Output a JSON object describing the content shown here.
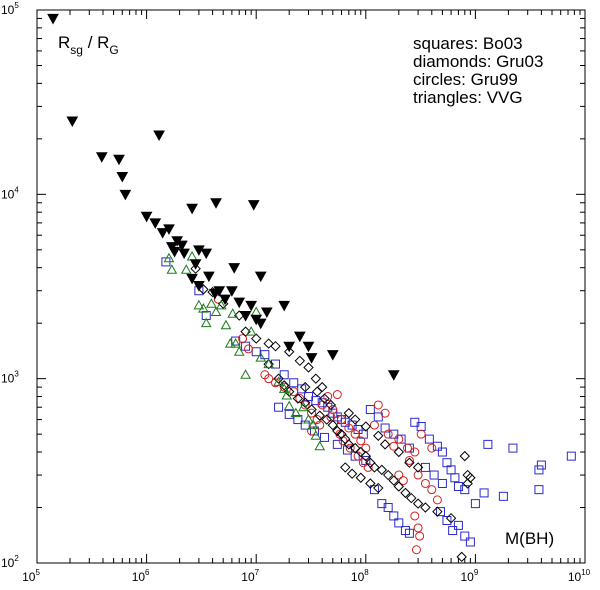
{
  "chart_data": {
    "type": "scatter",
    "title": "",
    "xlabel": "M(BH)",
    "ylabel": "R_sg / R_G",
    "xscale": "log",
    "yscale": "log",
    "xlim": [
      100000,
      10000000000
    ],
    "ylim": [
      100,
      100000
    ],
    "grid": false,
    "legend_placement": "top-right",
    "y_label_text": {
      "main": "R",
      "sub1": "sg",
      "sep": " / R",
      "sub2": "G"
    },
    "x_ticks": [
      {
        "base": "10",
        "exp": "5",
        "value": 100000
      },
      {
        "base": "10",
        "exp": "6",
        "value": 1000000
      },
      {
        "base": "10",
        "exp": "7",
        "value": 10000000
      },
      {
        "base": "10",
        "exp": "8",
        "value": 100000000
      },
      {
        "base": "10",
        "exp": "9",
        "value": 1000000000
      },
      {
        "base": "10",
        "exp": "10",
        "value": 10000000000
      }
    ],
    "y_ticks": [
      {
        "base": "10",
        "exp": "2",
        "value": 100
      },
      {
        "base": "10",
        "exp": "3",
        "value": 1000
      },
      {
        "base": "10",
        "exp": "4",
        "value": 10000
      },
      {
        "base": "10",
        "exp": "5",
        "value": 100000
      }
    ],
    "legend_lines": [
      "squares: Bo03",
      "diamonds: Gru03",
      "circles: Gru99",
      "triangles: VVG"
    ],
    "series": [
      {
        "marker": "triangle-down-filled",
        "color": "#000000",
        "points": [
          [
            140000,
            90000
          ],
          [
            210000,
            25000
          ],
          [
            390000,
            16000
          ],
          [
            560000,
            15500
          ],
          [
            600000,
            12500
          ],
          [
            640000,
            10000
          ],
          [
            1300000,
            21000
          ],
          [
            1000000,
            7600
          ],
          [
            1200000,
            7000
          ],
          [
            1400000,
            6200
          ],
          [
            1600000,
            6500
          ],
          [
            1700000,
            5200
          ],
          [
            1800000,
            4900
          ],
          [
            1900000,
            5600
          ],
          [
            2100000,
            5300
          ],
          [
            2200000,
            4800
          ],
          [
            2600000,
            8400
          ],
          [
            3000000,
            5000
          ],
          [
            3500000,
            4800
          ],
          [
            4300000,
            9000
          ],
          [
            2800000,
            4200
          ],
          [
            2600000,
            3500
          ],
          [
            3000000,
            3200
          ],
          [
            3700000,
            3600
          ],
          [
            4200000,
            2900
          ],
          [
            4600000,
            3000
          ],
          [
            5200000,
            2700
          ],
          [
            6000000,
            3000
          ],
          [
            9500000,
            8800
          ],
          [
            6300000,
            4000
          ],
          [
            11000000,
            3600
          ],
          [
            7000000,
            2600
          ],
          [
            8000000,
            2200
          ],
          [
            9000000,
            2500
          ],
          [
            10000000,
            2100
          ],
          [
            11000000,
            2000
          ],
          [
            12500000,
            2300
          ],
          [
            18000000,
            2500
          ],
          [
            20000000,
            1500
          ],
          [
            25000000,
            1700
          ],
          [
            30000000,
            1500
          ],
          [
            32000000,
            1300
          ],
          [
            50000000,
            1350
          ],
          [
            180000000,
            1050
          ]
        ]
      },
      {
        "marker": "triangle-up-open",
        "color": "#1a7a1a",
        "points": [
          [
            1600000,
            4500
          ],
          [
            1700000,
            3900
          ],
          [
            2300000,
            3900
          ],
          [
            2600000,
            4600
          ],
          [
            3000000,
            2500
          ],
          [
            3300000,
            2400
          ],
          [
            3500000,
            2000
          ],
          [
            3900000,
            2550
          ],
          [
            4300000,
            2300
          ],
          [
            4800000,
            2500
          ],
          [
            5300000,
            1950
          ],
          [
            5800000,
            1550
          ],
          [
            6100000,
            2250
          ],
          [
            6500000,
            1550
          ],
          [
            7000000,
            1400
          ],
          [
            8000000,
            1050
          ],
          [
            9000000,
            1800
          ],
          [
            10000000,
            2300
          ],
          [
            11000000,
            1300
          ],
          [
            13000000,
            1200
          ],
          [
            16000000,
            960
          ],
          [
            18000000,
            880
          ],
          [
            19000000,
            810
          ],
          [
            20000000,
            710
          ],
          [
            23000000,
            650
          ],
          [
            27000000,
            700
          ],
          [
            30000000,
            600
          ],
          [
            33000000,
            560
          ],
          [
            35000000,
            490
          ],
          [
            38000000,
            430
          ]
        ]
      },
      {
        "marker": "diamond-open",
        "color": "#000000",
        "points": [
          [
            2800000,
            3950
          ],
          [
            3300000,
            3050
          ],
          [
            4000000,
            2950
          ],
          [
            5000000,
            2550
          ],
          [
            7000000,
            2200
          ],
          [
            8000000,
            1800
          ],
          [
            10000000,
            1650
          ],
          [
            13000000,
            1550
          ],
          [
            15000000,
            1500
          ],
          [
            20000000,
            1400
          ],
          [
            25000000,
            1250
          ],
          [
            30000000,
            1150
          ],
          [
            35000000,
            1000
          ],
          [
            40000000,
            900
          ],
          [
            13000000,
            1200
          ],
          [
            16000000,
            1000
          ],
          [
            18000000,
            920
          ],
          [
            20000000,
            850
          ],
          [
            24000000,
            780
          ],
          [
            28000000,
            740
          ],
          [
            32000000,
            680
          ],
          [
            38000000,
            630
          ],
          [
            44000000,
            600
          ],
          [
            50000000,
            560
          ],
          [
            55000000,
            520
          ],
          [
            60000000,
            500
          ],
          [
            65000000,
            470
          ],
          [
            70000000,
            440
          ],
          [
            80000000,
            420
          ],
          [
            90000000,
            400
          ],
          [
            100000000,
            380
          ],
          [
            110000000,
            350
          ],
          [
            120000000,
            330
          ],
          [
            140000000,
            320
          ],
          [
            160000000,
            300
          ],
          [
            180000000,
            280
          ],
          [
            200000000,
            260
          ],
          [
            230000000,
            240
          ],
          [
            260000000,
            225
          ],
          [
            300000000,
            210
          ],
          [
            350000000,
            200
          ],
          [
            450000000,
            190
          ],
          [
            600000000,
            175
          ],
          [
            800000000,
            380
          ],
          [
            850000000,
            270
          ],
          [
            900000000,
            290
          ],
          [
            850000000,
            300
          ],
          [
            750000000,
            108
          ],
          [
            28000000,
            900
          ],
          [
            36000000,
            850
          ],
          [
            42000000,
            780
          ],
          [
            48000000,
            720
          ],
          [
            70000000,
            650
          ],
          [
            80000000,
            600
          ],
          [
            100000000,
            550
          ],
          [
            130000000,
            490
          ],
          [
            150000000,
            440
          ],
          [
            200000000,
            400
          ],
          [
            250000000,
            350
          ],
          [
            300000000,
            330
          ],
          [
            65000000,
            330
          ],
          [
            75000000,
            305
          ],
          [
            90000000,
            290
          ],
          [
            110000000,
            270
          ],
          [
            130000000,
            255
          ]
        ]
      },
      {
        "marker": "circle-open",
        "color": "#d42020",
        "points": [
          [
            4500000,
            2700
          ],
          [
            7500000,
            1650
          ],
          [
            8500000,
            1450
          ],
          [
            12000000,
            1050
          ],
          [
            13000000,
            1000
          ],
          [
            15000000,
            950
          ],
          [
            18000000,
            900
          ],
          [
            22000000,
            850
          ],
          [
            25000000,
            780
          ],
          [
            28000000,
            720
          ],
          [
            32000000,
            650
          ],
          [
            36000000,
            600
          ],
          [
            40000000,
            720
          ],
          [
            45000000,
            800
          ],
          [
            50000000,
            680
          ],
          [
            60000000,
            600
          ],
          [
            70000000,
            540
          ],
          [
            80000000,
            500
          ],
          [
            90000000,
            460
          ],
          [
            100000000,
            420
          ],
          [
            120000000,
            560
          ],
          [
            130000000,
            720
          ],
          [
            150000000,
            650
          ],
          [
            160000000,
            500
          ],
          [
            180000000,
            430
          ],
          [
            200000000,
            470
          ],
          [
            240000000,
            420
          ],
          [
            280000000,
            400
          ],
          [
            320000000,
            500
          ],
          [
            400000000,
            420
          ],
          [
            250000000,
            360
          ],
          [
            300000000,
            300
          ],
          [
            350000000,
            270
          ],
          [
            400000000,
            250
          ],
          [
            450000000,
            220
          ],
          [
            280000000,
            180
          ],
          [
            300000000,
            155
          ],
          [
            310000000,
            140
          ],
          [
            290000000,
            118
          ],
          [
            32000000,
            520
          ],
          [
            38000000,
            560
          ],
          [
            48000000,
            620
          ],
          [
            55000000,
            820
          ],
          [
            58000000,
            500
          ],
          [
            62000000,
            460
          ],
          [
            72000000,
            420
          ],
          [
            85000000,
            380
          ],
          [
            95000000,
            350
          ],
          [
            105000000,
            330
          ],
          [
            200000000,
            300
          ],
          [
            220000000,
            280
          ]
        ]
      },
      {
        "marker": "square-open",
        "color": "#2a2ad0",
        "points": [
          [
            1500000,
            4300
          ],
          [
            3000000,
            3000
          ],
          [
            3500000,
            2200
          ],
          [
            6500000,
            1600
          ],
          [
            8000000,
            1500
          ],
          [
            10000000,
            1400
          ],
          [
            12000000,
            1350
          ],
          [
            15000000,
            1200
          ],
          [
            18000000,
            1050
          ],
          [
            22000000,
            950
          ],
          [
            26000000,
            880
          ],
          [
            30000000,
            800
          ],
          [
            35000000,
            760
          ],
          [
            40000000,
            740
          ],
          [
            45000000,
            700
          ],
          [
            50000000,
            650
          ],
          [
            55000000,
            620
          ],
          [
            60000000,
            600
          ],
          [
            65000000,
            580
          ],
          [
            75000000,
            560
          ],
          [
            85000000,
            530
          ],
          [
            95000000,
            500
          ],
          [
            110000000,
            680
          ],
          [
            130000000,
            620
          ],
          [
            150000000,
            540
          ],
          [
            180000000,
            500
          ],
          [
            210000000,
            470
          ],
          [
            250000000,
            420
          ],
          [
            280000000,
            580
          ],
          [
            320000000,
            550
          ],
          [
            380000000,
            470
          ],
          [
            450000000,
            430
          ],
          [
            500000000,
            400
          ],
          [
            550000000,
            350
          ],
          [
            600000000,
            320
          ],
          [
            650000000,
            290
          ],
          [
            700000000,
            260
          ],
          [
            800000000,
            250
          ],
          [
            1300000000,
            440
          ],
          [
            1200000000,
            240
          ],
          [
            2200000000,
            420
          ],
          [
            3800000000,
            320
          ],
          [
            4000000000,
            340
          ],
          [
            3800000000,
            250
          ],
          [
            7500000000,
            380
          ],
          [
            120000000,
            250
          ],
          [
            140000000,
            210
          ],
          [
            160000000,
            200
          ],
          [
            180000000,
            180
          ],
          [
            200000000,
            165
          ],
          [
            230000000,
            150
          ],
          [
            250000000,
            145
          ],
          [
            480000000,
            190
          ],
          [
            550000000,
            170
          ],
          [
            620000000,
            150
          ],
          [
            700000000,
            160
          ],
          [
            800000000,
            140
          ],
          [
            900000000,
            130
          ],
          [
            1000000000,
            210
          ],
          [
            1800000000,
            230
          ],
          [
            16000000,
            700
          ],
          [
            20000000,
            640
          ],
          [
            24000000,
            600
          ],
          [
            28000000,
            560
          ],
          [
            34000000,
            520
          ],
          [
            42000000,
            480
          ],
          [
            55000000,
            440
          ],
          [
            68000000,
            410
          ],
          [
            80000000,
            380
          ],
          [
            100000000,
            360
          ],
          [
            350000000,
            330
          ],
          [
            420000000,
            300
          ],
          [
            500000000,
            270
          ]
        ]
      }
    ]
  }
}
